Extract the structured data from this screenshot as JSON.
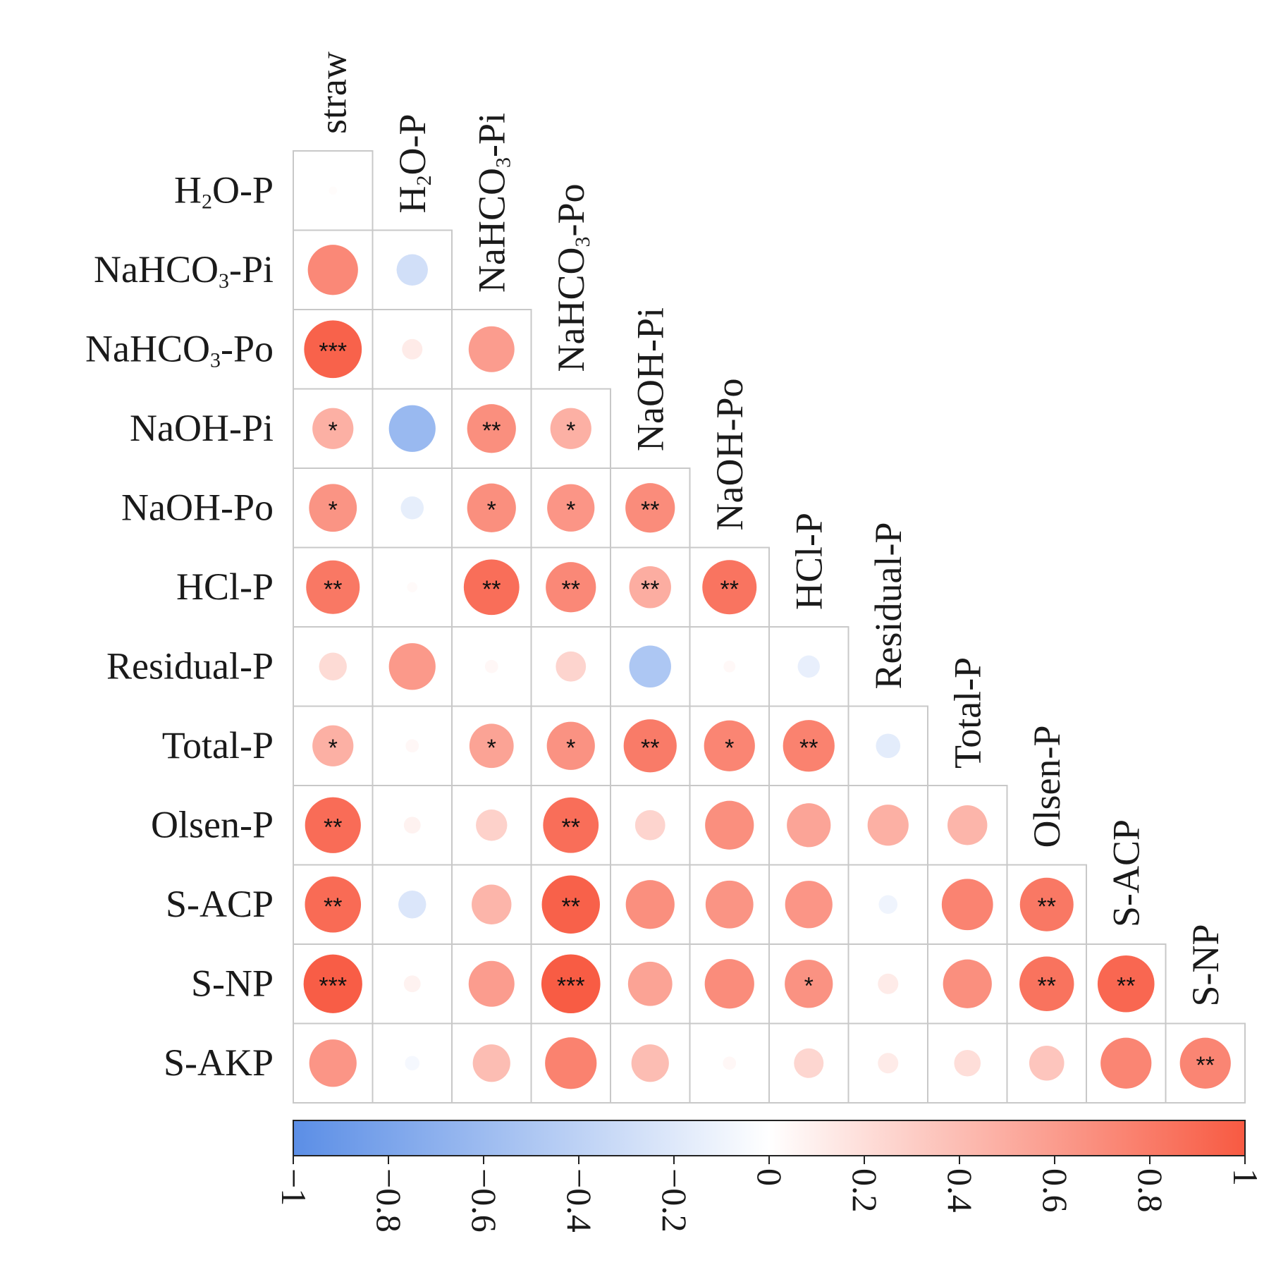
{
  "chart_data": {
    "type": "heatmap",
    "style": "lower-triangle correlation matrix, circle size and color proportional to r",
    "columns": [
      "straw",
      "H₂O-P",
      "NaHCO₃-Pi",
      "NaHCO₃-Po",
      "NaOH-Pi",
      "NaOH-Po",
      "HCl-P",
      "Residual-P",
      "Total-P",
      "Olsen-P",
      "S-ACP",
      "S-NP"
    ],
    "rows": [
      "H₂O-P",
      "NaHCO₃-Pi",
      "NaHCO₃-Po",
      "NaOH-Pi",
      "NaOH-Po",
      "HCl-P",
      "Residual-P",
      "Total-P",
      "Olsen-P",
      "S-ACP",
      "S-NP",
      "S-AKP"
    ],
    "values": [
      [
        0.02
      ],
      [
        0.72,
        -0.28
      ],
      [
        0.95,
        0.12,
        0.6
      ],
      [
        0.48,
        -0.62,
        0.68,
        0.48
      ],
      [
        0.65,
        -0.15,
        0.68,
        0.64,
        0.7
      ],
      [
        0.82,
        0.03,
        0.88,
        0.72,
        0.5,
        0.84
      ],
      [
        0.22,
        0.62,
        0.05,
        0.26,
        -0.5,
        0.04,
        -0.14
      ],
      [
        0.48,
        0.05,
        0.56,
        0.66,
        0.8,
        0.74,
        0.76,
        -0.17
      ],
      [
        0.89,
        0.08,
        0.28,
        0.88,
        0.26,
        0.68,
        0.55,
        0.48,
        0.45
      ],
      [
        0.9,
        -0.22,
        0.45,
        0.96,
        0.68,
        0.65,
        0.64,
        -0.1,
        0.75,
        0.82
      ],
      [
        0.98,
        0.08,
        0.6,
        0.99,
        0.56,
        0.7,
        0.66,
        0.12,
        0.68,
        0.85,
        0.92
      ],
      [
        0.64,
        -0.06,
        0.4,
        0.76,
        0.4,
        0.05,
        0.25,
        0.12,
        0.2,
        0.35,
        0.74,
        0.74
      ]
    ],
    "significance": [
      [
        ""
      ],
      [
        "",
        ""
      ],
      [
        "***",
        "",
        ""
      ],
      [
        "*",
        "",
        "**",
        "*"
      ],
      [
        "*",
        "",
        "*",
        "*",
        "**"
      ],
      [
        "**",
        "",
        "**",
        "**",
        "**",
        "**"
      ],
      [
        "",
        "",
        "",
        "",
        "",
        "",
        ""
      ],
      [
        "*",
        "",
        "*",
        "*",
        "**",
        "*",
        "**",
        ""
      ],
      [
        "**",
        "",
        "",
        "**",
        "",
        "",
        "",
        "",
        ""
      ],
      [
        "**",
        "",
        "",
        "**",
        "",
        "",
        "",
        "",
        "",
        "**"
      ],
      [
        "***",
        "",
        "",
        "***",
        "",
        "",
        "*",
        "",
        "",
        "**",
        "**"
      ],
      [
        "",
        "",
        "",
        "",
        "",
        "",
        "",
        "",
        "",
        "",
        "",
        "**"
      ]
    ],
    "colorbar": {
      "range": [
        -1,
        1
      ],
      "ticks": [
        "−1",
        "−0.8",
        "−0.6",
        "−0.4",
        "−0.2",
        "0",
        "0.2",
        "0.4",
        "0.6",
        "0.8",
        "1"
      ],
      "tick_values": [
        -1,
        -0.8,
        -0.6,
        -0.4,
        -0.2,
        0,
        0.2,
        0.4,
        0.6,
        0.8,
        1
      ],
      "negative_color": "#5b8ee6",
      "neutral_color": "#ffffff",
      "positive_color": "#f85a42"
    }
  }
}
